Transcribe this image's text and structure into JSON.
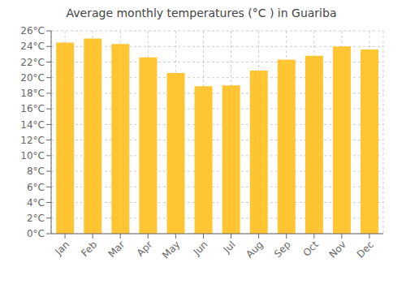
{
  "chart_data": {
    "type": "bar",
    "title": "Average monthly temperatures (°C ) in Guariba",
    "categories": [
      "Jan",
      "Feb",
      "Mar",
      "Apr",
      "May",
      "Jun",
      "Jul",
      "Aug",
      "Sep",
      "Oct",
      "Nov",
      "Dec"
    ],
    "values": [
      24.5,
      25.0,
      24.3,
      22.6,
      20.6,
      18.9,
      19.0,
      20.9,
      22.3,
      22.8,
      24.0,
      23.6
    ],
    "color": "#FFC533",
    "ylim": [
      0,
      26
    ],
    "yticks": [
      {
        "value": 0,
        "label": "0°C"
      },
      {
        "value": 2,
        "label": "2°C"
      },
      {
        "value": 4,
        "label": "4°C"
      },
      {
        "value": 6,
        "label": "6°C"
      },
      {
        "value": 8,
        "label": "8°C"
      },
      {
        "value": 10,
        "label": "10°C"
      },
      {
        "value": 12,
        "label": "12°C"
      },
      {
        "value": 14,
        "label": "14°C"
      },
      {
        "value": 16,
        "label": "16°C"
      },
      {
        "value": 18,
        "label": "18°C"
      },
      {
        "value": 20,
        "label": "20°C"
      },
      {
        "value": 22,
        "label": "22°C"
      },
      {
        "value": 24,
        "label": "24°C"
      },
      {
        "value": 26,
        "label": "26°C"
      }
    ],
    "grid": true
  }
}
